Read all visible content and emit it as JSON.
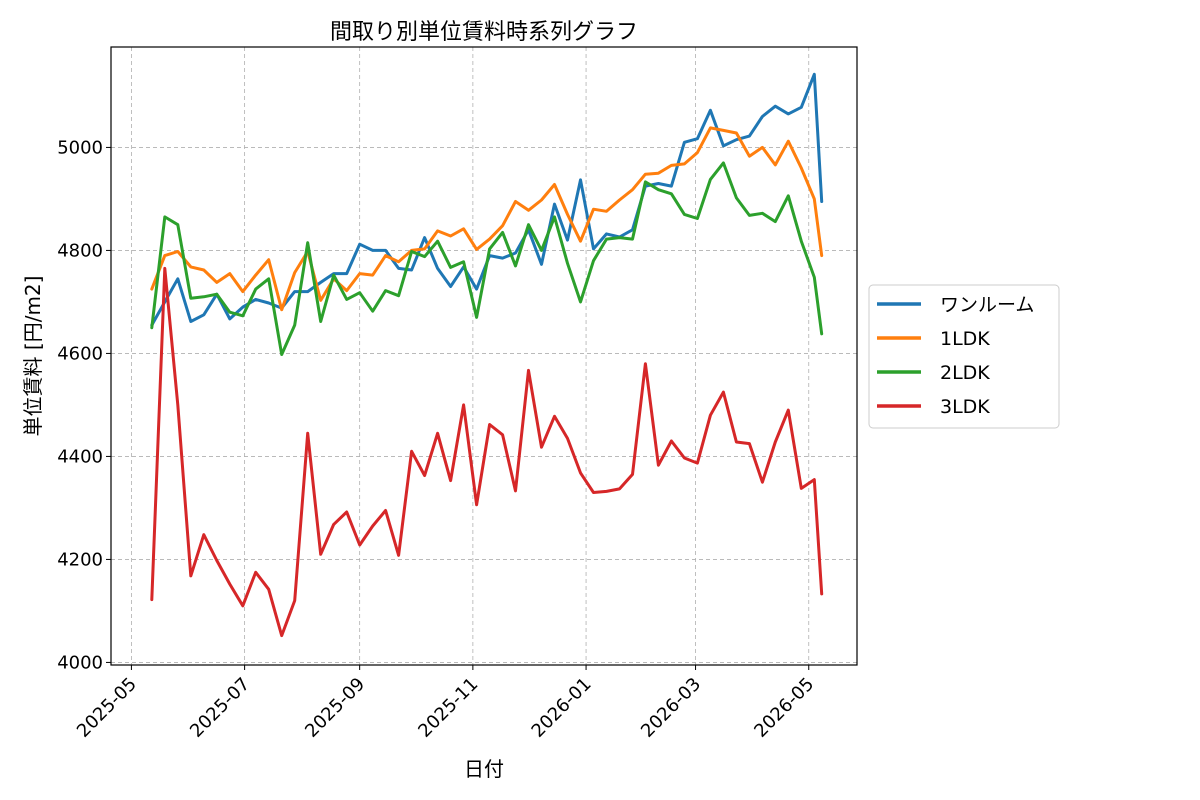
{
  "chart_data": {
    "type": "line",
    "title": "間取り別単位賃料時系列グラフ",
    "xlabel": "日付",
    "ylabel": "単位賃料 [円/m2]",
    "x_ticks": [
      "2025-05",
      "2025-07",
      "2025-09",
      "2025-11",
      "2026-01",
      "2026-03",
      "2026-05"
    ],
    "y_ticks": [
      4000,
      4200,
      4400,
      4600,
      4800,
      5000
    ],
    "xlim": [
      "2025-04-20",
      "2026-05-27"
    ],
    "ylim": [
      3995,
      5195
    ],
    "grid": true,
    "legend_position": "right-outside",
    "x": [
      "2025-05-12",
      "2025-05-19",
      "2025-05-26",
      "2025-06-02",
      "2025-06-09",
      "2025-06-16",
      "2025-06-23",
      "2025-06-30",
      "2025-07-07",
      "2025-07-14",
      "2025-07-21",
      "2025-07-28",
      "2025-08-04",
      "2025-08-11",
      "2025-08-18",
      "2025-08-25",
      "2025-09-01",
      "2025-09-08",
      "2025-09-15",
      "2025-09-22",
      "2025-09-29",
      "2025-10-06",
      "2025-10-13",
      "2025-10-20",
      "2025-10-27",
      "2025-11-03",
      "2025-11-10",
      "2025-11-17",
      "2025-11-24",
      "2025-12-01",
      "2025-12-08",
      "2025-12-15",
      "2025-12-22",
      "2025-12-29",
      "2026-01-05",
      "2026-01-12",
      "2026-01-19",
      "2026-01-26",
      "2026-02-02",
      "2026-02-09",
      "2026-02-16",
      "2026-02-23",
      "2026-03-02",
      "2026-03-09",
      "2026-03-16",
      "2026-03-23",
      "2026-03-30",
      "2026-04-06",
      "2026-04-13",
      "2026-04-20",
      "2026-04-27",
      "2026-05-04",
      "2026-05-08"
    ],
    "series": [
      {
        "name": "ワンルーム",
        "color": "#1f77b4",
        "values": [
          4655,
          4700,
          4745,
          4662,
          4675,
          4715,
          4667,
          4690,
          4705,
          4698,
          4688,
          4720,
          4720,
          4738,
          4755,
          4755,
          4812,
          4800,
          4800,
          4765,
          4762,
          4825,
          4765,
          4730,
          4768,
          4725,
          4790,
          4785,
          4795,
          4840,
          4773,
          4890,
          4820,
          4937,
          4803,
          4832,
          4826,
          4840,
          4925,
          4930,
          4925,
          5010,
          5017,
          5072,
          5003,
          5015,
          5022,
          5060,
          5080,
          5065,
          5078,
          5142,
          4895
        ]
      },
      {
        "name": "1LDK",
        "color": "#ff7f0e",
        "values": [
          4725,
          4790,
          4798,
          4768,
          4762,
          4738,
          4755,
          4720,
          4752,
          4782,
          4685,
          4757,
          4798,
          4703,
          4745,
          4722,
          4755,
          4752,
          4790,
          4778,
          4800,
          4803,
          4838,
          4828,
          4842,
          4802,
          4822,
          4848,
          4895,
          4878,
          4898,
          4928,
          4870,
          4818,
          4880,
          4876,
          4898,
          4918,
          4948,
          4950,
          4965,
          4968,
          4990,
          5038,
          5033,
          5028,
          4983,
          5000,
          4966,
          5012,
          4960,
          4900,
          4790
        ]
      },
      {
        "name": "2LDK",
        "color": "#2ca02c",
        "values": [
          4650,
          4865,
          4850,
          4707,
          4710,
          4715,
          4680,
          4673,
          4725,
          4745,
          4598,
          4655,
          4815,
          4662,
          4752,
          4705,
          4718,
          4682,
          4722,
          4712,
          4798,
          4788,
          4818,
          4767,
          4778,
          4670,
          4803,
          4835,
          4770,
          4850,
          4800,
          4865,
          4775,
          4700,
          4780,
          4822,
          4825,
          4822,
          4933,
          4918,
          4910,
          4870,
          4862,
          4938,
          4970,
          4902,
          4868,
          4872,
          4856,
          4906,
          4818,
          4748,
          4638
        ]
      },
      {
        "name": "3LDK",
        "color": "#d62728",
        "values": [
          4122,
          4765,
          4500,
          4168,
          4248,
          4198,
          4152,
          4110,
          4175,
          4142,
          4052,
          4120,
          4445,
          4210,
          4268,
          4292,
          4228,
          4265,
          4295,
          4208,
          4410,
          4363,
          4445,
          4353,
          4500,
          4306,
          4462,
          4442,
          4333,
          4567,
          4418,
          4478,
          4435,
          4368,
          4330,
          4332,
          4337,
          4365,
          4580,
          4383,
          4430,
          4397,
          4387,
          4480,
          4525,
          4428,
          4425,
          4350,
          4428,
          4490,
          4338,
          4355,
          4133
        ]
      }
    ]
  }
}
